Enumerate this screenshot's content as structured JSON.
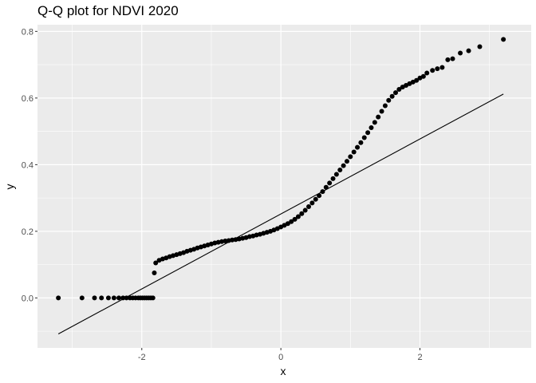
{
  "chart_data": {
    "type": "scatter",
    "title": "Q-Q plot for NDVI 2020",
    "xlabel": "x",
    "ylabel": "y",
    "xlim": [
      -3.5,
      3.6
    ],
    "ylim": [
      -0.15,
      0.82
    ],
    "x_ticks": [
      -2,
      0,
      2
    ],
    "x_tick_labels": [
      "-2",
      "0",
      "2"
    ],
    "y_ticks": [
      0.0,
      0.2,
      0.4,
      0.6,
      0.8
    ],
    "y_tick_labels": [
      "0.0",
      "0.2",
      "0.4",
      "0.6",
      "0.8"
    ],
    "grid": true,
    "colors": {
      "panel": "#ebebeb",
      "grid": "#ffffff",
      "points": "#000000",
      "line": "#000000"
    },
    "reference_line": {
      "x": [
        -3.2,
        3.2
      ],
      "y": [
        -0.108,
        0.612
      ]
    },
    "points": [
      [
        -3.2,
        0.0
      ],
      [
        -2.86,
        0.0
      ],
      [
        -2.68,
        0.0
      ],
      [
        -2.58,
        0.0
      ],
      [
        -2.48,
        0.0
      ],
      [
        -2.4,
        0.0
      ],
      [
        -2.33,
        0.0
      ],
      [
        -2.27,
        0.0
      ],
      [
        -2.22,
        0.0
      ],
      [
        -2.17,
        0.0
      ],
      [
        -2.13,
        0.0
      ],
      [
        -2.09,
        0.0
      ],
      [
        -2.05,
        0.0
      ],
      [
        -2.02,
        0.0
      ],
      [
        -1.99,
        0.0
      ],
      [
        -1.96,
        0.0
      ],
      [
        -1.93,
        0.0
      ],
      [
        -1.9,
        0.0
      ],
      [
        -1.87,
        0.0
      ],
      [
        -1.84,
        0.0
      ],
      [
        -1.82,
        0.075
      ],
      [
        -1.8,
        0.105
      ],
      [
        -1.75,
        0.113
      ],
      [
        -1.7,
        0.117
      ],
      [
        -1.65,
        0.12
      ],
      [
        -1.6,
        0.124
      ],
      [
        -1.55,
        0.127
      ],
      [
        -1.5,
        0.13
      ],
      [
        -1.45,
        0.133
      ],
      [
        -1.4,
        0.136
      ],
      [
        -1.35,
        0.14
      ],
      [
        -1.3,
        0.143
      ],
      [
        -1.25,
        0.146
      ],
      [
        -1.2,
        0.15
      ],
      [
        -1.15,
        0.153
      ],
      [
        -1.1,
        0.156
      ],
      [
        -1.05,
        0.159
      ],
      [
        -1.0,
        0.162
      ],
      [
        -0.95,
        0.165
      ],
      [
        -0.9,
        0.167
      ],
      [
        -0.85,
        0.169
      ],
      [
        -0.8,
        0.171
      ],
      [
        -0.75,
        0.172
      ],
      [
        -0.7,
        0.174
      ],
      [
        -0.65,
        0.175
      ],
      [
        -0.6,
        0.177
      ],
      [
        -0.55,
        0.179
      ],
      [
        -0.5,
        0.181
      ],
      [
        -0.45,
        0.184
      ],
      [
        -0.4,
        0.186
      ],
      [
        -0.35,
        0.189
      ],
      [
        -0.3,
        0.191
      ],
      [
        -0.25,
        0.194
      ],
      [
        -0.2,
        0.197
      ],
      [
        -0.15,
        0.2
      ],
      [
        -0.1,
        0.204
      ],
      [
        -0.05,
        0.208
      ],
      [
        0.0,
        0.213
      ],
      [
        0.05,
        0.218
      ],
      [
        0.1,
        0.223
      ],
      [
        0.15,
        0.229
      ],
      [
        0.2,
        0.236
      ],
      [
        0.25,
        0.244
      ],
      [
        0.3,
        0.253
      ],
      [
        0.35,
        0.263
      ],
      [
        0.4,
        0.274
      ],
      [
        0.45,
        0.285
      ],
      [
        0.5,
        0.296
      ],
      [
        0.55,
        0.307
      ],
      [
        0.6,
        0.319
      ],
      [
        0.65,
        0.332
      ],
      [
        0.7,
        0.345
      ],
      [
        0.75,
        0.358
      ],
      [
        0.8,
        0.371
      ],
      [
        0.85,
        0.384
      ],
      [
        0.9,
        0.397
      ],
      [
        0.95,
        0.41
      ],
      [
        1.0,
        0.424
      ],
      [
        1.05,
        0.438
      ],
      [
        1.1,
        0.452
      ],
      [
        1.15,
        0.466
      ],
      [
        1.2,
        0.481
      ],
      [
        1.25,
        0.496
      ],
      [
        1.3,
        0.511
      ],
      [
        1.35,
        0.527
      ],
      [
        1.4,
        0.543
      ],
      [
        1.45,
        0.56
      ],
      [
        1.5,
        0.577
      ],
      [
        1.55,
        0.593
      ],
      [
        1.6,
        0.605
      ],
      [
        1.65,
        0.616
      ],
      [
        1.7,
        0.626
      ],
      [
        1.75,
        0.633
      ],
      [
        1.8,
        0.638
      ],
      [
        1.85,
        0.643
      ],
      [
        1.9,
        0.648
      ],
      [
        1.95,
        0.653
      ],
      [
        2.0,
        0.66
      ],
      [
        2.05,
        0.665
      ],
      [
        2.1,
        0.675
      ],
      [
        2.18,
        0.683
      ],
      [
        2.25,
        0.688
      ],
      [
        2.32,
        0.692
      ],
      [
        2.4,
        0.715
      ],
      [
        2.47,
        0.718
      ],
      [
        2.58,
        0.735
      ],
      [
        2.7,
        0.742
      ],
      [
        2.86,
        0.754
      ],
      [
        3.2,
        0.776
      ]
    ]
  }
}
